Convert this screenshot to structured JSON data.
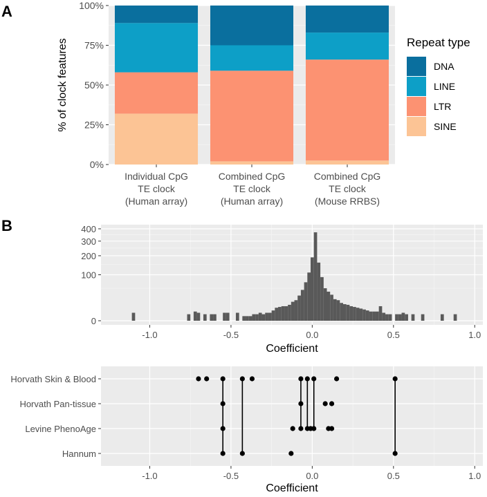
{
  "panel_labels": [
    "A",
    "B"
  ],
  "chart_data": [
    {
      "type": "bar",
      "subtype": "stacked-percent",
      "panel": "A",
      "ylabel": "% of clock features",
      "ylim": [
        0,
        100
      ],
      "yticks": [
        "0%",
        "25%",
        "50%",
        "75%",
        "100%"
      ],
      "yticks_values": [
        0,
        25,
        50,
        75,
        100
      ],
      "categories": [
        [
          "Individual CpG",
          "TE clock",
          "(Human array)"
        ],
        [
          "Combined CpG",
          "TE clock",
          "(Human array)"
        ],
        [
          "Combined CpG",
          "TE clock",
          "(Mouse RRBS)"
        ]
      ],
      "series": [
        {
          "name": "SINE",
          "color": "#fcc495",
          "values": [
            32,
            2,
            2.5
          ]
        },
        {
          "name": "LTR",
          "color": "#fc9272",
          "values": [
            26,
            57,
            63.5
          ]
        },
        {
          "name": "LINE",
          "color": "#0d9fc7",
          "values": [
            31,
            16,
            17
          ]
        },
        {
          "name": "DNA",
          "color": "#0a6f9e",
          "values": [
            11,
            25,
            17
          ]
        }
      ],
      "legend": {
        "title": "Repeat type",
        "position": "right",
        "order": [
          "DNA",
          "LINE",
          "LTR",
          "SINE"
        ]
      }
    },
    {
      "type": "bar",
      "subtype": "histogram",
      "panel": "B",
      "xlabel": "Coefficient",
      "ylabel": "",
      "xlim": [
        -1.3,
        1.05
      ],
      "xticks": [
        "-1.0",
        "-0.5",
        "0.0",
        "0.5",
        "1.0"
      ],
      "xticks_values": [
        -1,
        -0.5,
        0,
        0.5,
        1
      ],
      "yscale": "sqrt",
      "ylim": [
        0,
        400
      ],
      "yticks": [
        "0",
        "100",
        "200",
        "300",
        "400"
      ],
      "yticks_values": [
        0,
        100,
        200,
        300,
        400
      ],
      "bin_width": 0.02,
      "bar_color": "#595959",
      "bins": [
        {
          "x": -1.1,
          "count": 3
        },
        {
          "x": -0.76,
          "count": 2
        },
        {
          "x": -0.72,
          "count": 4
        },
        {
          "x": -0.7,
          "count": 3
        },
        {
          "x": -0.66,
          "count": 2
        },
        {
          "x": -0.62,
          "count": 2
        },
        {
          "x": -0.6,
          "count": 2
        },
        {
          "x": -0.54,
          "count": 3
        },
        {
          "x": -0.52,
          "count": 3
        },
        {
          "x": -0.46,
          "count": 3
        },
        {
          "x": -0.42,
          "count": 1
        },
        {
          "x": -0.4,
          "count": 1
        },
        {
          "x": -0.38,
          "count": 1
        },
        {
          "x": -0.36,
          "count": 2
        },
        {
          "x": -0.34,
          "count": 2
        },
        {
          "x": -0.32,
          "count": 3
        },
        {
          "x": -0.3,
          "count": 2
        },
        {
          "x": -0.28,
          "count": 3
        },
        {
          "x": -0.26,
          "count": 3
        },
        {
          "x": -0.24,
          "count": 5
        },
        {
          "x": -0.22,
          "count": 8
        },
        {
          "x": -0.2,
          "count": 9
        },
        {
          "x": -0.18,
          "count": 10
        },
        {
          "x": -0.16,
          "count": 10
        },
        {
          "x": -0.14,
          "count": 12
        },
        {
          "x": -0.12,
          "count": 17
        },
        {
          "x": -0.1,
          "count": 20
        },
        {
          "x": -0.08,
          "count": 30
        },
        {
          "x": -0.06,
          "count": 45
        },
        {
          "x": -0.04,
          "count": 70
        },
        {
          "x": -0.02,
          "count": 110
        },
        {
          "x": 0,
          "count": 190
        },
        {
          "x": 0.02,
          "count": 370
        },
        {
          "x": 0.04,
          "count": 160
        },
        {
          "x": 0.06,
          "count": 90
        },
        {
          "x": 0.08,
          "count": 50
        },
        {
          "x": 0.1,
          "count": 40
        },
        {
          "x": 0.12,
          "count": 32
        },
        {
          "x": 0.14,
          "count": 22
        },
        {
          "x": 0.16,
          "count": 20
        },
        {
          "x": 0.18,
          "count": 15
        },
        {
          "x": 0.2,
          "count": 13
        },
        {
          "x": 0.22,
          "count": 12
        },
        {
          "x": 0.24,
          "count": 10
        },
        {
          "x": 0.26,
          "count": 9
        },
        {
          "x": 0.28,
          "count": 8
        },
        {
          "x": 0.3,
          "count": 7
        },
        {
          "x": 0.32,
          "count": 6
        },
        {
          "x": 0.34,
          "count": 5
        },
        {
          "x": 0.36,
          "count": 4
        },
        {
          "x": 0.38,
          "count": 4
        },
        {
          "x": 0.4,
          "count": 4
        },
        {
          "x": 0.42,
          "count": 10
        },
        {
          "x": 0.44,
          "count": 3
        },
        {
          "x": 0.46,
          "count": 2
        },
        {
          "x": 0.48,
          "count": 2
        },
        {
          "x": 0.52,
          "count": 2
        },
        {
          "x": 0.54,
          "count": 2
        },
        {
          "x": 0.56,
          "count": 3
        },
        {
          "x": 0.58,
          "count": 2
        },
        {
          "x": 0.62,
          "count": 2
        },
        {
          "x": 0.68,
          "count": 2
        },
        {
          "x": 0.8,
          "count": 2
        },
        {
          "x": 0.88,
          "count": 2
        }
      ]
    },
    {
      "type": "scatter",
      "subtype": "dot-connected",
      "panel": "B",
      "xlabel": "Coefficient",
      "xlim": [
        -1.3,
        1.05
      ],
      "xticks": [
        "-1.0",
        "-0.5",
        "0.0",
        "0.5",
        "1.0"
      ],
      "xticks_values": [
        -1,
        -0.5,
        0,
        0.5,
        1
      ],
      "categories": [
        "Hannum",
        "Levine PhenoAge",
        "Horvath Pan-tissue",
        "Horvath Skin & Blood"
      ],
      "point_color": "#000000",
      "series": [
        {
          "name": "Horvath Skin & Blood",
          "x": [
            -0.7,
            -0.65,
            -0.55,
            -0.43,
            -0.37,
            -0.07,
            -0.03,
            0.01,
            0.15,
            0.51
          ]
        },
        {
          "name": "Horvath Pan-tissue",
          "x": [
            -0.55,
            -0.07,
            0.08,
            0.12
          ]
        },
        {
          "name": "Levine PhenoAge",
          "x": [
            -0.55,
            -0.12,
            -0.07,
            -0.03,
            -0.01,
            0.01,
            0.1,
            0.12
          ]
        },
        {
          "name": "Hannum",
          "x": [
            -0.55,
            -0.43,
            -0.13,
            0.51
          ]
        }
      ],
      "connections": [
        {
          "x_from": -0.55,
          "from": "Horvath Skin & Blood",
          "x_to": -0.55,
          "to": "Hannum"
        },
        {
          "x_from": -0.43,
          "from": "Horvath Skin & Blood",
          "x_to": -0.43,
          "to": "Hannum"
        },
        {
          "x_from": -0.07,
          "from": "Horvath Skin & Blood",
          "x_to": -0.07,
          "to": "Levine PhenoAge"
        },
        {
          "x_from": -0.03,
          "from": "Horvath Skin & Blood",
          "x_to": -0.03,
          "to": "Levine PhenoAge"
        },
        {
          "x_from": 0.01,
          "from": "Horvath Skin & Blood",
          "x_to": 0.01,
          "to": "Levine PhenoAge"
        },
        {
          "x_from": 0.51,
          "from": "Horvath Skin & Blood",
          "x_to": 0.51,
          "to": "Hannum"
        }
      ]
    }
  ]
}
